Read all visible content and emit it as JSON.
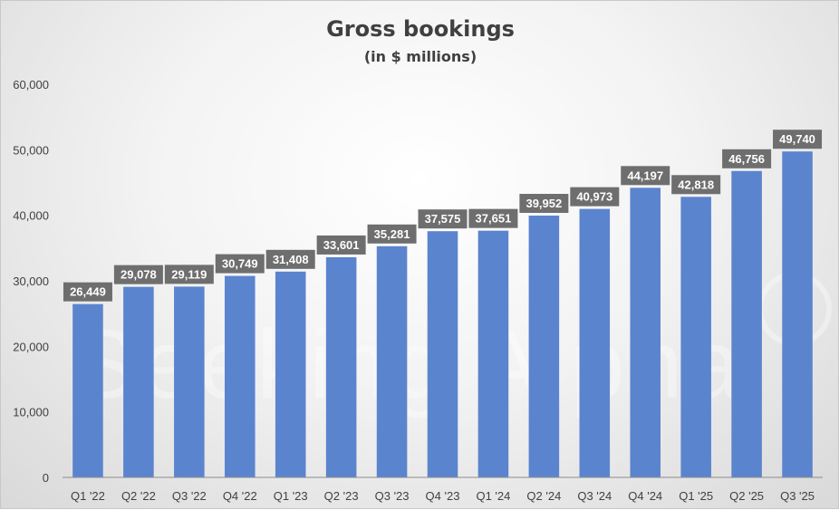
{
  "chart_data": {
    "type": "bar",
    "title": "Gross bookings",
    "subtitle": "(in $ millions)",
    "xlabel": "",
    "ylabel": "",
    "ylim": [
      0,
      60000
    ],
    "yticks": [
      0,
      10000,
      20000,
      30000,
      40000,
      50000,
      60000
    ],
    "ytick_labels": [
      "0",
      "10,000",
      "20,000",
      "30,000",
      "40,000",
      "50,000",
      "60,000"
    ],
    "categories": [
      "Q1 '22",
      "Q2 '22",
      "Q3 '22",
      "Q4 '22",
      "Q1 '23",
      "Q2 '23",
      "Q3 '23",
      "Q4 '23",
      "Q1 '24",
      "Q2 '24",
      "Q3 '24",
      "Q4 '24",
      "Q1 '25",
      "Q2 '25",
      "Q3 '25"
    ],
    "values": [
      26449,
      29078,
      29119,
      30749,
      31408,
      33601,
      35281,
      37575,
      37651,
      39952,
      40973,
      44197,
      42818,
      46756,
      49740
    ],
    "data_labels": [
      "26,449",
      "29,078",
      "29,119",
      "30,749",
      "31,408",
      "33,601",
      "35,281",
      "37,575",
      "37,651",
      "39,952",
      "40,973",
      "44,197",
      "42,818",
      "46,756",
      "49,740"
    ],
    "grid": false,
    "legend": "none",
    "bar_color": "#5b84cf",
    "label_bg_color": "#6e6e6e"
  },
  "watermark": "Seeking Alpha"
}
